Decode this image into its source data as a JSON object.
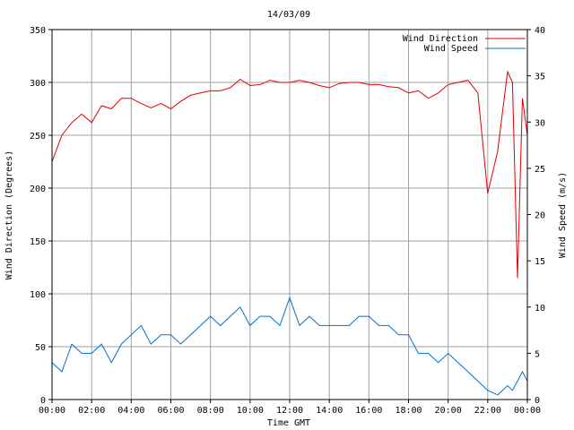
{
  "chart_data": {
    "type": "line",
    "title": "14/03/09",
    "xlabel": "Time GMT",
    "ylabel_left": "Wind Direction (Degrees)",
    "ylabel_right": "Wind Speed (m/s)",
    "x_ticks": [
      "00:00",
      "02:00",
      "04:00",
      "06:00",
      "08:00",
      "10:00",
      "12:00",
      "14:00",
      "16:00",
      "18:00",
      "20:00",
      "22:00",
      "00:00"
    ],
    "xlim_hours": [
      0,
      24
    ],
    "ylim_left": [
      0,
      350
    ],
    "yticks_left": [
      "0",
      "50",
      "100",
      "150",
      "200",
      "250",
      "300",
      "350"
    ],
    "ylim_right": [
      0,
      40
    ],
    "yticks_right": [
      "0",
      "5",
      "10",
      "15",
      "20",
      "25",
      "30",
      "35",
      "40"
    ],
    "grid": true,
    "legend_position": "top-right",
    "series": [
      {
        "name": "Wind Direction",
        "axis": "left",
        "color": "#e00000",
        "hours": [
          0,
          0.5,
          1,
          1.5,
          2,
          2.5,
          3,
          3.5,
          4,
          4.5,
          5,
          5.5,
          6,
          6.5,
          7,
          7.5,
          8,
          8.5,
          9,
          9.5,
          10,
          10.5,
          11,
          11.5,
          12,
          12.5,
          13,
          13.5,
          14,
          14.5,
          15,
          15.5,
          16,
          16.5,
          17,
          17.5,
          18,
          18.5,
          19,
          19.5,
          20,
          20.5,
          21,
          21.5,
          22,
          22.5,
          23,
          23.25,
          23.5,
          23.75,
          24
        ],
        "values": [
          225,
          250,
          262,
          270,
          262,
          278,
          275,
          285,
          285,
          280,
          276,
          280,
          275,
          282,
          288,
          290,
          292,
          292,
          295,
          303,
          297,
          298,
          302,
          300,
          300,
          302,
          300,
          297,
          295,
          299,
          300,
          300,
          298,
          298,
          296,
          295,
          290,
          292,
          285,
          290,
          298,
          300,
          302,
          290,
          195,
          235,
          310,
          300,
          115,
          285,
          250
        ]
      },
      {
        "name": "Wind Speed",
        "axis": "right",
        "color": "#0070d0",
        "hours": [
          0,
          0.5,
          1,
          1.5,
          2,
          2.5,
          3,
          3.5,
          4,
          4.5,
          5,
          5.5,
          6,
          6.5,
          7,
          7.5,
          8,
          8.5,
          9,
          9.5,
          10,
          10.5,
          11,
          11.5,
          12,
          12.5,
          13,
          13.5,
          14,
          14.5,
          15,
          15.5,
          16,
          16.5,
          17,
          17.5,
          18,
          18.5,
          19,
          19.5,
          20,
          20.5,
          21,
          21.5,
          22,
          22.5,
          23,
          23.25,
          23.5,
          23.75,
          24
        ],
        "values": [
          4,
          3,
          6,
          5,
          5,
          6,
          4,
          6,
          7,
          8,
          6,
          7,
          7,
          6,
          7,
          8,
          9,
          8,
          9,
          10,
          8,
          9,
          9,
          8,
          11,
          8,
          9,
          8,
          8,
          8,
          8,
          9,
          9,
          8,
          8,
          7,
          7,
          5,
          5,
          4,
          5,
          4,
          3,
          2,
          1,
          0.5,
          1.5,
          1,
          2,
          3,
          2
        ]
      }
    ]
  }
}
